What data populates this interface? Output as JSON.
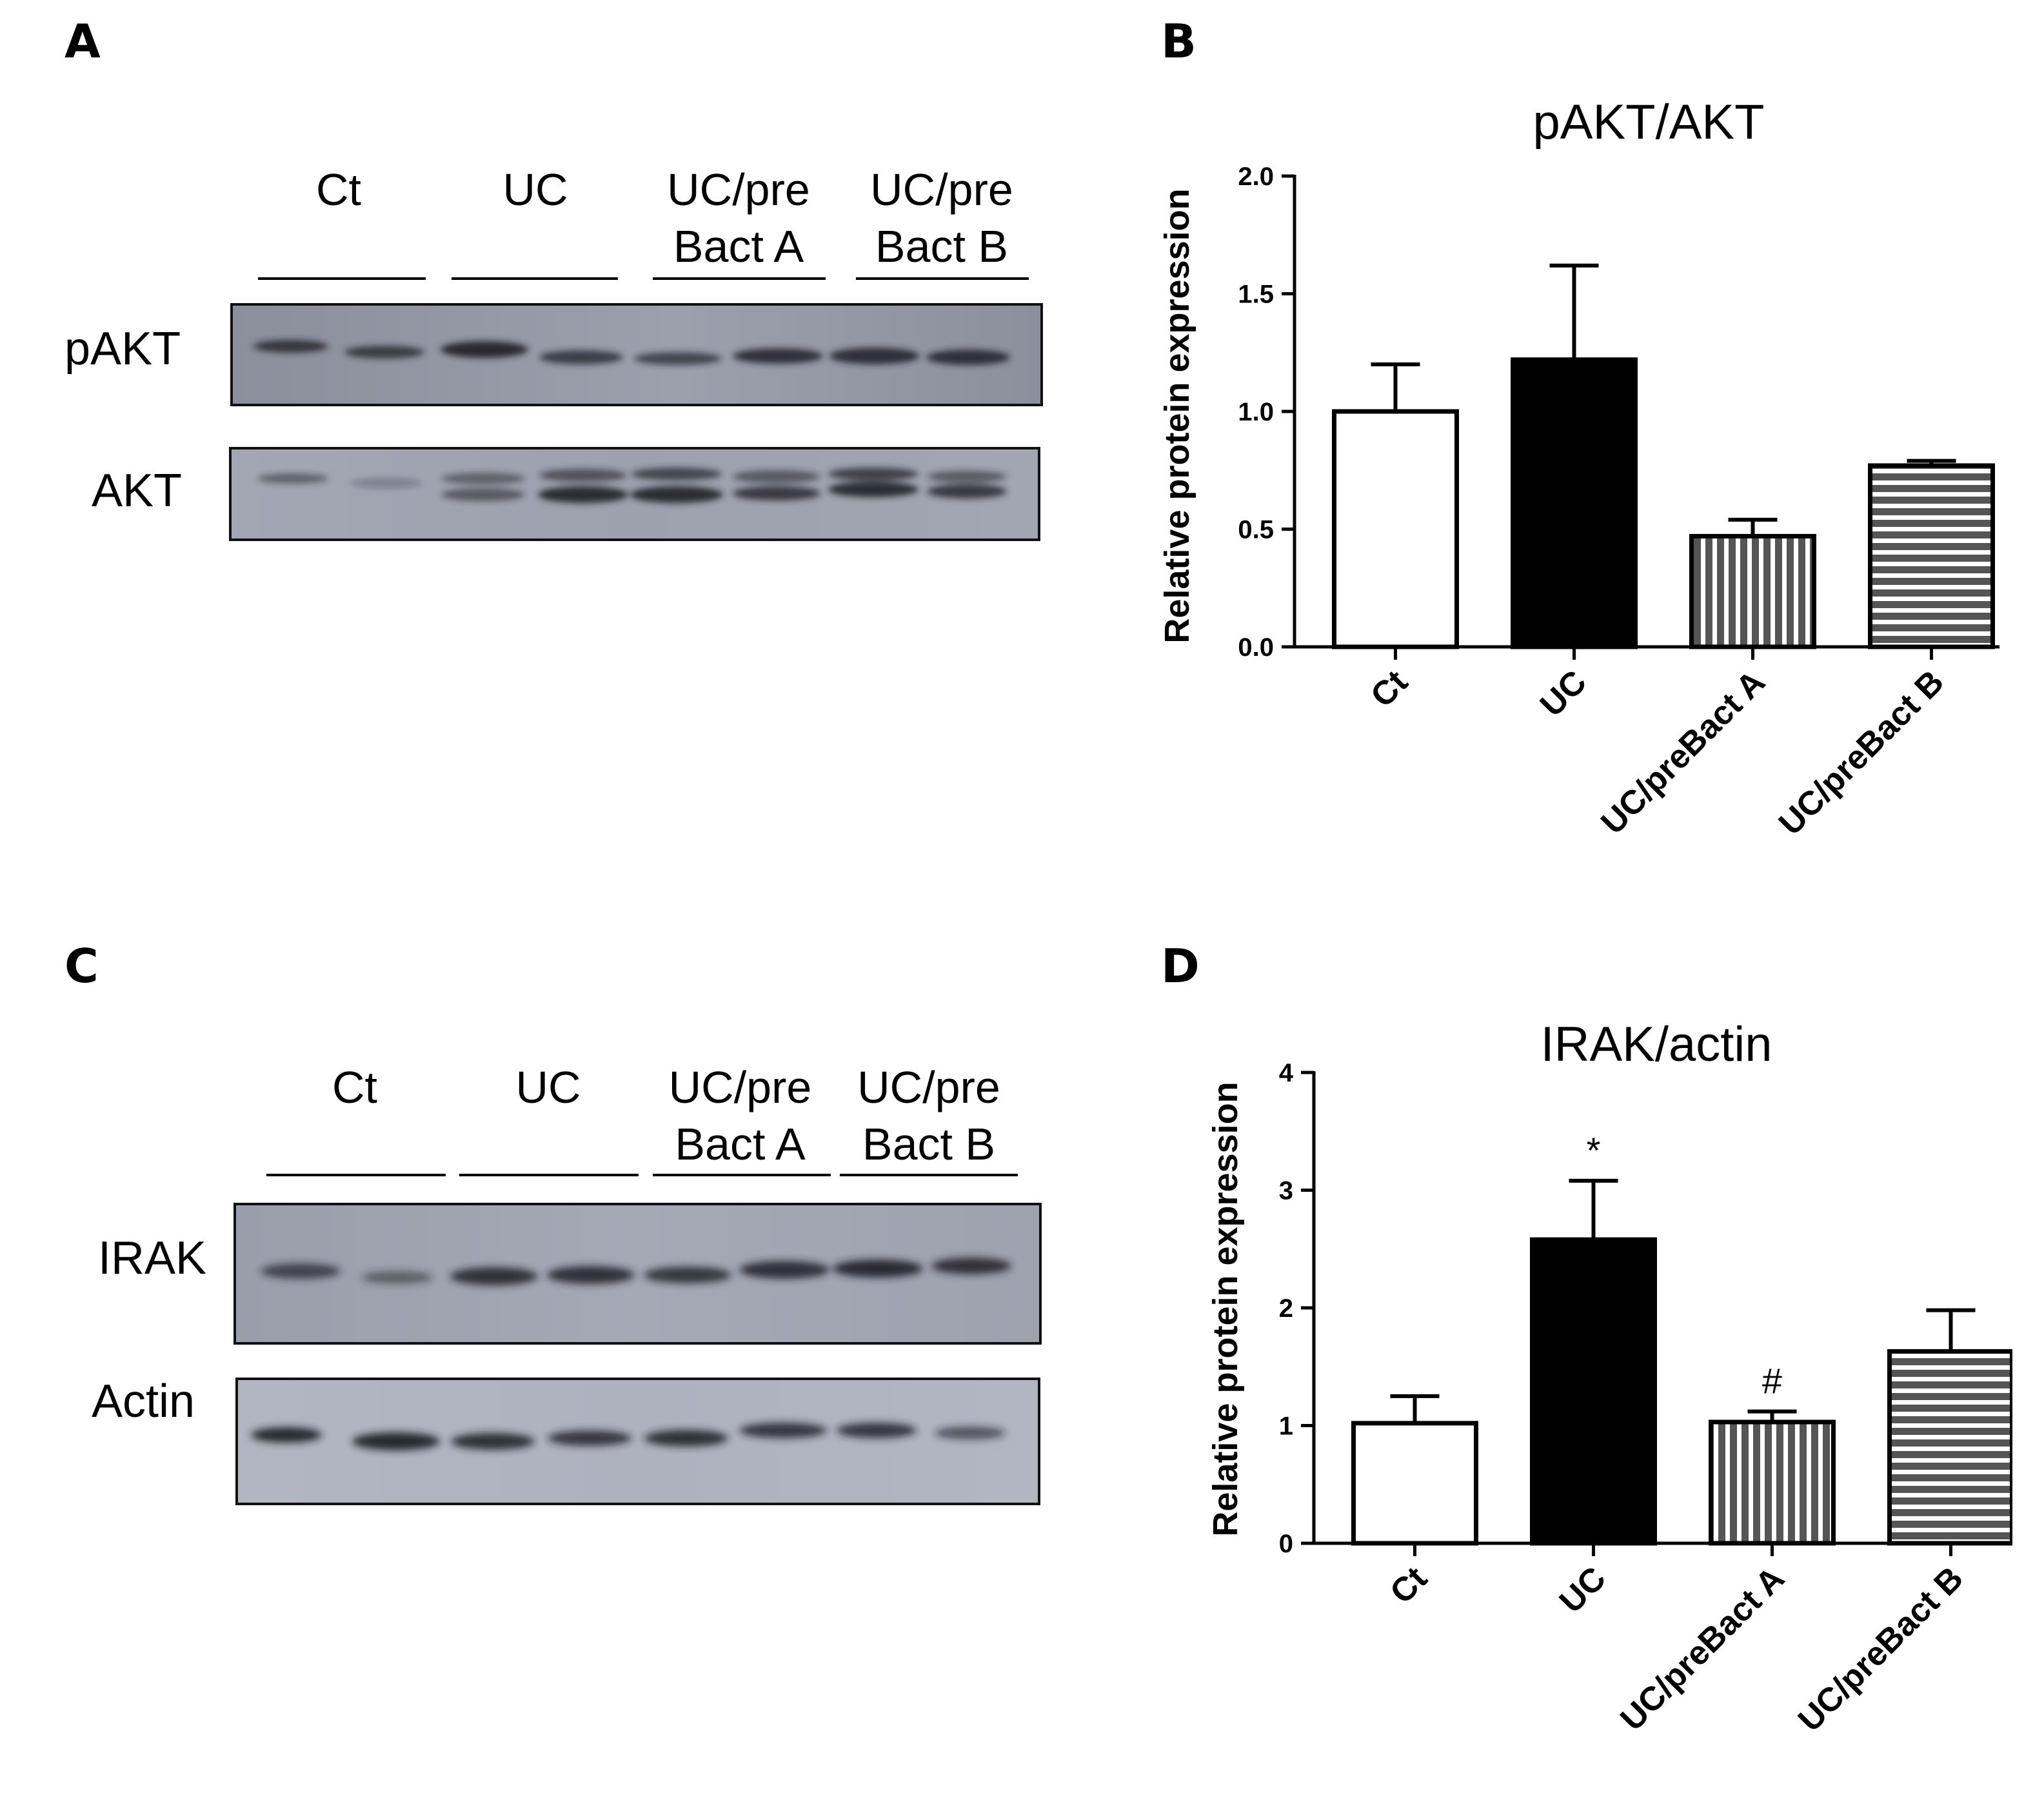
{
  "panels": {
    "a": {
      "letter": "A"
    },
    "b": {
      "letter": "B"
    },
    "c": {
      "letter": "C"
    },
    "d": {
      "letter": "D"
    }
  },
  "blot_a": {
    "groups": [
      {
        "line1": "",
        "line2": "Ct"
      },
      {
        "line1": "",
        "line2": "UC"
      },
      {
        "line1": "UC/pre",
        "line2": "Bact A"
      },
      {
        "line1": "UC/pre",
        "line2": "Bact B"
      }
    ],
    "rows": [
      "pAKT",
      "AKT"
    ]
  },
  "blot_c": {
    "groups": [
      {
        "line1": "",
        "line2": "Ct"
      },
      {
        "line1": "",
        "line2": "UC"
      },
      {
        "line1": "UC/pre",
        "line2": "Bact A"
      },
      {
        "line1": "UC/pre",
        "line2": "Bact B"
      }
    ],
    "rows": [
      "IRAK",
      "Actin"
    ]
  },
  "chart_data": [
    {
      "type": "bar",
      "title": "pAKT/AKT",
      "xlabel": "",
      "ylabel": "Relative protein expression",
      "categories": [
        "Ct",
        "UC",
        "UC/preBact A",
        "UC/preBact B"
      ],
      "values": [
        1.0,
        1.22,
        0.47,
        0.77
      ],
      "error": [
        0.2,
        0.4,
        0.07,
        0.02
      ],
      "annotations": [
        "",
        "",
        "",
        ""
      ],
      "fills": [
        "white",
        "black",
        "vertical-stripes",
        "horizontal-stripes"
      ],
      "ylim": [
        0,
        2.0
      ],
      "yticks": [
        "0.0",
        "0.5",
        "1.0",
        "1.5",
        "2.0"
      ],
      "ytick_values": [
        0,
        0.5,
        1.0,
        1.5,
        2.0
      ],
      "grid": false,
      "legend": "none"
    },
    {
      "type": "bar",
      "title": "IRAK/actin",
      "xlabel": "",
      "ylabel": "Relative protein expression",
      "categories": [
        "Ct",
        "UC",
        "UC/preBact A",
        "UC/preBact B"
      ],
      "values": [
        1.02,
        2.58,
        1.03,
        1.63
      ],
      "error": [
        0.23,
        0.5,
        0.09,
        0.35
      ],
      "annotations": [
        "",
        "*",
        "#",
        ""
      ],
      "fills": [
        "white",
        "black",
        "vertical-stripes",
        "horizontal-stripes"
      ],
      "ylim": [
        0,
        4
      ],
      "yticks": [
        "0",
        "1",
        "2",
        "3",
        "4"
      ],
      "ytick_values": [
        0,
        1,
        2,
        3,
        4
      ],
      "grid": false,
      "legend": "none"
    }
  ]
}
